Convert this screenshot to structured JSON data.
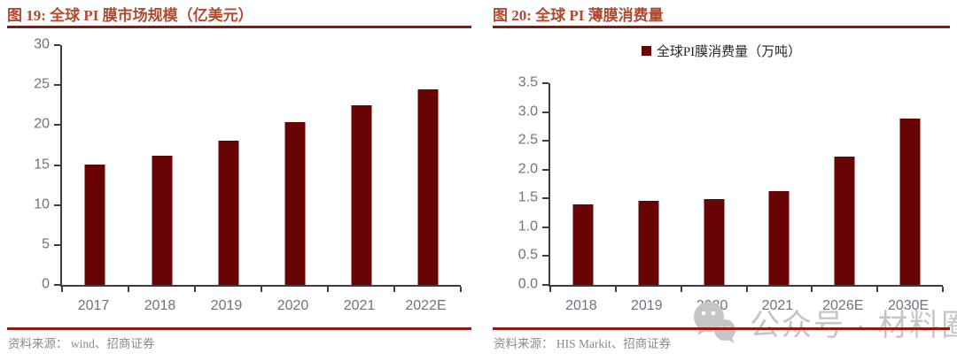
{
  "chart_data": [
    {
      "type": "bar",
      "title": "图 19:  全球 PI 膜市场规模（亿美元）",
      "categories": [
        "2017",
        "2018",
        "2019",
        "2020",
        "2021",
        "2022E"
      ],
      "values": [
        15.1,
        16.2,
        18.0,
        20.4,
        22.5,
        24.5
      ],
      "ylabel": "",
      "xlabel": "",
      "ylim": [
        0,
        30
      ],
      "ytick_labels": [
        "0",
        "5",
        "10",
        "15",
        "20",
        "25",
        "30"
      ],
      "grid": false,
      "legend_position": "none",
      "source": "资料来源：  wind、招商证券"
    },
    {
      "type": "bar",
      "title": "图 20:  全球 PI 薄膜消费量",
      "legend": "全球PI膜消费量（万吨）",
      "categories": [
        "2018",
        "2019",
        "2020",
        "2021",
        "2026E",
        "2030E"
      ],
      "values": [
        1.4,
        1.46,
        1.49,
        1.63,
        2.23,
        2.88
      ],
      "ylabel": "",
      "xlabel": "",
      "ylim": [
        0,
        3.5
      ],
      "ytick_labels": [
        "0.0",
        "0.5",
        "1.0",
        "1.5",
        "2.0",
        "2.5",
        "3.0",
        "3.5"
      ],
      "grid": false,
      "legend_position": "top-center",
      "source": "资料来源：  HIS Markit、招商证券"
    }
  ],
  "watermark": {
    "icon": "wechat-icon",
    "text": "公众号 · 材料圈"
  },
  "colors": {
    "bar": "#680404",
    "title": "#b14a31",
    "rule": "#8b1712",
    "source_rule": "#951713",
    "axis": "#3d3d3d",
    "tick_label": "#6d7380",
    "watermark": "#c5c5c5"
  }
}
